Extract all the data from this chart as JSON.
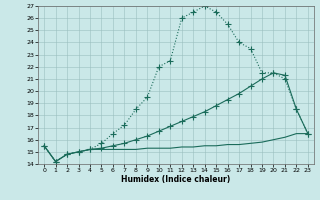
{
  "xlabel": "Humidex (Indice chaleur)",
  "xlim": [
    -0.5,
    23.5
  ],
  "ylim": [
    14,
    27
  ],
  "yticks": [
    14,
    15,
    16,
    17,
    18,
    19,
    20,
    21,
    22,
    23,
    24,
    25,
    26,
    27
  ],
  "xticks": [
    0,
    1,
    2,
    3,
    4,
    5,
    6,
    7,
    8,
    9,
    10,
    11,
    12,
    13,
    14,
    15,
    16,
    17,
    18,
    19,
    20,
    21,
    22,
    23
  ],
  "bg_color": "#cae8e8",
  "line_color": "#1a6b5a",
  "grid_color": "#9bbfbf",
  "line1_x": [
    0,
    1,
    2,
    3,
    4,
    5,
    6,
    7,
    8,
    9,
    10,
    11,
    12,
    13,
    14,
    15,
    16,
    17,
    18,
    19,
    20,
    21,
    22,
    23
  ],
  "line1_y": [
    15.5,
    14.2,
    14.8,
    15.0,
    15.2,
    15.7,
    16.5,
    17.2,
    18.5,
    19.5,
    22.0,
    22.5,
    26.0,
    26.5,
    27.0,
    26.5,
    25.5,
    24.0,
    23.5,
    21.5,
    21.5,
    21.0,
    18.5,
    16.5
  ],
  "line2_x": [
    0,
    1,
    2,
    3,
    4,
    5,
    6,
    7,
    8,
    9,
    10,
    11,
    12,
    13,
    14,
    15,
    16,
    17,
    18,
    19,
    20,
    21,
    22,
    23
  ],
  "line2_y": [
    15.5,
    14.2,
    14.8,
    15.0,
    15.2,
    15.3,
    15.5,
    15.7,
    16.0,
    16.3,
    16.7,
    17.1,
    17.5,
    17.9,
    18.3,
    18.8,
    19.3,
    19.8,
    20.4,
    21.0,
    21.5,
    21.3,
    18.5,
    16.5
  ],
  "line3_x": [
    0,
    1,
    2,
    3,
    4,
    5,
    6,
    7,
    8,
    9,
    10,
    11,
    12,
    13,
    14,
    15,
    16,
    17,
    18,
    19,
    20,
    21,
    22,
    23
  ],
  "line3_y": [
    15.5,
    14.2,
    14.8,
    15.0,
    15.2,
    15.2,
    15.2,
    15.2,
    15.2,
    15.3,
    15.3,
    15.3,
    15.4,
    15.4,
    15.5,
    15.5,
    15.6,
    15.6,
    15.7,
    15.8,
    16.0,
    16.2,
    16.5,
    16.5
  ]
}
